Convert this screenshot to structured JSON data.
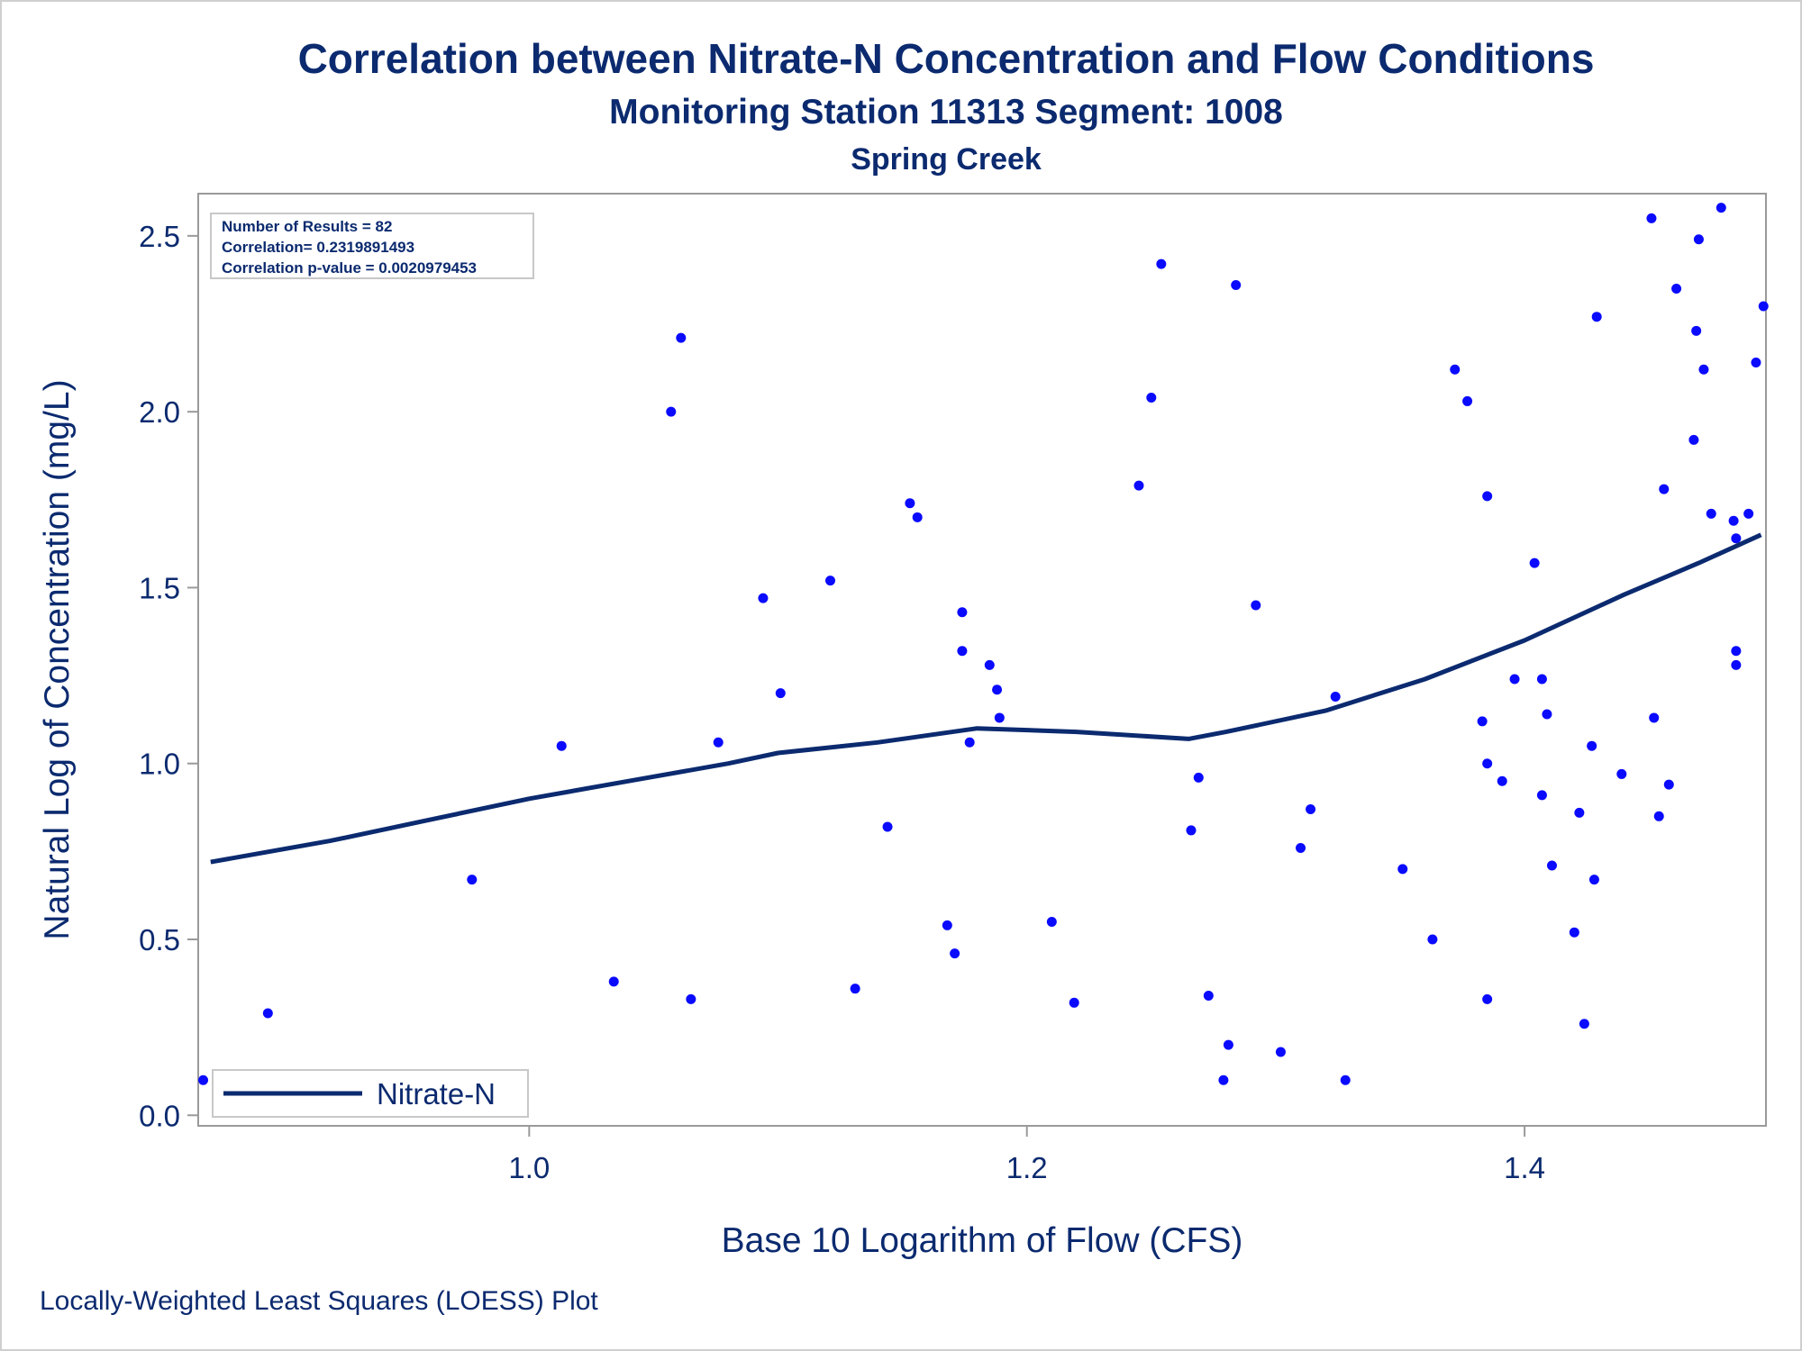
{
  "titles": {
    "title": "Correlation between Nitrate-N Concentration and Flow Conditions",
    "subtitle": "Monitoring Station 11313 Segment: 1008",
    "subsubtitle": "Spring Creek"
  },
  "footnote": "Locally-Weighted Least Squares (LOESS) Plot",
  "stats_box": {
    "line1": "Number of Results = 82",
    "line2": "Correlation= 0.2319891493",
    "line3": "Correlation p-value = 0.0020979453"
  },
  "colors": {
    "text": "#0b2a6f",
    "points": "#0a0aff",
    "line": "#0b2a6f",
    "frame": "#9a9a9a"
  },
  "chart_data": {
    "type": "scatter",
    "xlabel": "Base 10 Logarithm of Flow (CFS)",
    "ylabel": "Natural Log of Concentration (mg/L)",
    "xlim": [
      0.867,
      1.497
    ],
    "ylim": [
      -0.03,
      2.62
    ],
    "xticks": [
      "1.0",
      "1.2",
      "1.4"
    ],
    "yticks": [
      "0.0",
      "0.5",
      "1.0",
      "1.5",
      "2.0",
      "2.5"
    ],
    "grid": false,
    "legend_position": "bottom-left",
    "series": [
      {
        "name": "",
        "kind": "scatter",
        "points": [
          [
            0.869,
            0.1
          ],
          [
            0.895,
            0.29
          ],
          [
            0.977,
            0.67
          ],
          [
            1.013,
            1.05
          ],
          [
            1.034,
            0.38
          ],
          [
            1.057,
            2.0
          ],
          [
            1.061,
            2.21
          ],
          [
            1.065,
            0.33
          ],
          [
            1.076,
            1.06
          ],
          [
            1.094,
            1.47
          ],
          [
            1.101,
            1.2
          ],
          [
            1.121,
            1.52
          ],
          [
            1.131,
            0.36
          ],
          [
            1.144,
            0.82
          ],
          [
            1.153,
            1.74
          ],
          [
            1.156,
            1.7
          ],
          [
            1.168,
            0.54
          ],
          [
            1.171,
            0.46
          ],
          [
            1.174,
            1.43
          ],
          [
            1.174,
            1.32
          ],
          [
            1.177,
            1.06
          ],
          [
            1.185,
            1.28
          ],
          [
            1.188,
            1.21
          ],
          [
            1.189,
            1.13
          ],
          [
            1.21,
            0.55
          ],
          [
            1.219,
            0.32
          ],
          [
            1.245,
            1.79
          ],
          [
            1.25,
            2.04
          ],
          [
            1.254,
            2.42
          ],
          [
            1.266,
            0.81
          ],
          [
            1.269,
            0.96
          ],
          [
            1.273,
            0.34
          ],
          [
            1.279,
            0.1
          ],
          [
            1.281,
            0.2
          ],
          [
            1.284,
            2.36
          ],
          [
            1.292,
            1.45
          ],
          [
            1.302,
            0.18
          ],
          [
            1.31,
            0.76
          ],
          [
            1.314,
            0.87
          ],
          [
            1.324,
            1.19
          ],
          [
            1.328,
            0.1
          ],
          [
            1.351,
            0.7
          ],
          [
            1.363,
            0.5
          ],
          [
            1.372,
            2.12
          ],
          [
            1.377,
            2.03
          ],
          [
            1.383,
            1.12
          ],
          [
            1.385,
            1.76
          ],
          [
            1.385,
            1.0
          ],
          [
            1.385,
            0.33
          ],
          [
            1.391,
            0.95
          ],
          [
            1.396,
            1.24
          ],
          [
            1.404,
            1.57
          ],
          [
            1.407,
            0.91
          ],
          [
            1.407,
            1.24
          ],
          [
            1.409,
            1.14
          ],
          [
            1.411,
            0.71
          ],
          [
            1.42,
            0.52
          ],
          [
            1.422,
            0.86
          ],
          [
            1.424,
            0.26
          ],
          [
            1.427,
            1.05
          ],
          [
            1.428,
            0.67
          ],
          [
            1.429,
            2.27
          ],
          [
            1.439,
            0.97
          ],
          [
            1.451,
            2.55
          ],
          [
            1.452,
            1.13
          ],
          [
            1.454,
            0.85
          ],
          [
            1.456,
            1.78
          ],
          [
            1.458,
            0.94
          ],
          [
            1.461,
            2.35
          ],
          [
            1.468,
            1.92
          ],
          [
            1.469,
            2.23
          ],
          [
            1.47,
            2.49
          ],
          [
            1.472,
            2.12
          ],
          [
            1.475,
            1.71
          ],
          [
            1.479,
            2.58
          ],
          [
            1.484,
            1.69
          ],
          [
            1.485,
            1.64
          ],
          [
            1.485,
            1.32
          ],
          [
            1.485,
            1.28
          ],
          [
            1.49,
            1.71
          ],
          [
            1.493,
            2.14
          ],
          [
            1.496,
            2.3
          ]
        ]
      },
      {
        "name": "Nitrate-N",
        "kind": "line",
        "points": [
          [
            0.872,
            0.72
          ],
          [
            0.92,
            0.78
          ],
          [
            0.96,
            0.84
          ],
          [
            1.0,
            0.9
          ],
          [
            1.04,
            0.95
          ],
          [
            1.08,
            1.0
          ],
          [
            1.1,
            1.03
          ],
          [
            1.14,
            1.06
          ],
          [
            1.18,
            1.1
          ],
          [
            1.22,
            1.09
          ],
          [
            1.265,
            1.07
          ],
          [
            1.28,
            1.09
          ],
          [
            1.32,
            1.15
          ],
          [
            1.36,
            1.24
          ],
          [
            1.4,
            1.35
          ],
          [
            1.44,
            1.48
          ],
          [
            1.47,
            1.57
          ],
          [
            1.495,
            1.65
          ]
        ]
      }
    ]
  }
}
